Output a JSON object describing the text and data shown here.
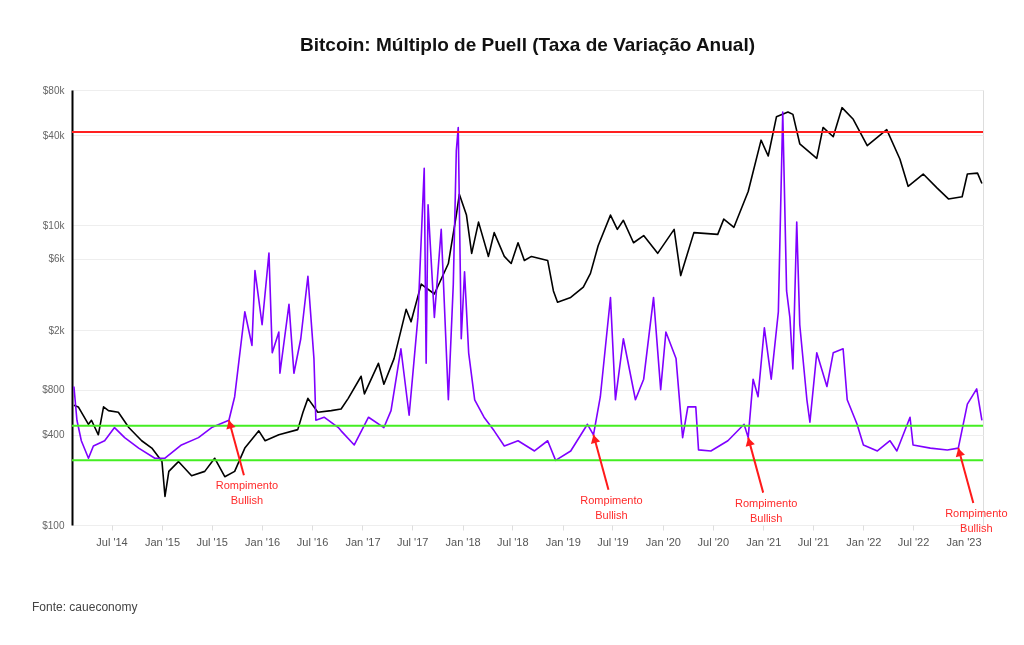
{
  "chart_data": {
    "type": "line",
    "title": "Bitcoin: Múltiplo de Puell (Taxa de Variação Anual)",
    "series": [
      {
        "color": "#000000",
        "x": [
          "2014-02-14",
          "2014-03-02",
          "2014-04-08",
          "2014-04-19",
          "2014-05-14",
          "2014-06-02",
          "2014-06-20",
          "2014-07-26",
          "2014-09-02",
          "2014-10-19",
          "2014-11-25",
          "2015-01-01",
          "2015-01-12",
          "2015-01-26",
          "2015-03-02",
          "2015-04-19",
          "2015-06-06",
          "2015-07-12",
          "2015-08-18",
          "2015-09-23",
          "2015-10-30",
          "2015-12-20",
          "2016-01-12",
          "2016-03-02",
          "2016-05-10",
          "2016-05-29",
          "2016-06-16",
          "2016-07-22",
          "2016-09-09",
          "2016-10-15",
          "2016-11-10",
          "2016-12-27",
          "2017-01-08",
          "2017-02-28",
          "2017-03-20",
          "2017-04-26",
          "2017-06-09",
          "2017-06-27",
          "2017-08-03",
          "2017-09-20",
          "2017-11-10",
          "2017-12-09",
          "2017-12-20",
          "2018-01-15",
          "2018-02-03",
          "2018-02-28",
          "2018-04-05",
          "2018-04-26",
          "2018-06-02",
          "2018-06-27",
          "2018-07-22",
          "2018-08-14",
          "2018-09-09",
          "2018-11-07",
          "2018-11-28",
          "2018-12-13",
          "2019-01-30",
          "2019-03-17",
          "2019-04-12",
          "2019-05-10",
          "2019-06-24",
          "2019-07-19",
          "2019-08-10",
          "2019-09-16",
          "2019-10-23",
          "2019-12-13",
          "2020-02-11",
          "2020-03-06",
          "2020-04-23",
          "2020-07-19",
          "2020-08-10",
          "2020-09-16",
          "2020-11-07",
          "2020-12-24",
          "2021-01-19",
          "2021-02-18",
          "2021-04-01",
          "2021-04-19",
          "2021-05-14",
          "2021-07-15",
          "2021-08-07",
          "2021-09-13",
          "2021-10-15",
          "2021-11-25",
          "2022-01-15",
          "2022-03-27",
          "2022-05-14",
          "2022-06-13",
          "2022-08-07",
          "2022-09-27",
          "2022-11-07",
          "2022-12-27",
          "2023-01-15",
          "2023-02-21",
          "2023-03-09"
        ],
        "values": [
          630,
          614,
          470,
          500,
          400,
          614,
          580,
          565,
          447,
          365,
          326,
          265,
          155,
          228,
          265,
          213,
          228,
          279,
          210,
          228,
          326,
          425,
          365,
          400,
          433,
          565,
          700,
          565,
          580,
          595,
          700,
          983,
          750,
          1200,
          870,
          1290,
          2750,
          2270,
          4050,
          3480,
          5560,
          11700,
          16100,
          11700,
          6500,
          10500,
          6200,
          8940,
          6200,
          5560,
          7650,
          5830,
          6200,
          5830,
          3650,
          3070,
          3300,
          3870,
          4780,
          7300,
          11700,
          9400,
          10800,
          7650,
          8540,
          6500,
          9400,
          4620,
          8940,
          8700,
          11000,
          9700,
          16800,
          37000,
          29000,
          53000,
          57000,
          55000,
          35000,
          28000,
          45000,
          39000,
          61000,
          51000,
          34000,
          43500,
          27700,
          18200,
          22000,
          17700,
          15000,
          15500,
          22000,
          22300,
          19000
        ]
      },
      {
        "color": "#7f00ff",
        "x": [
          "2014-02-14",
          "2014-02-25",
          "2014-03-13",
          "2014-04-08",
          "2014-04-26",
          "2014-06-06",
          "2014-07-12",
          "2014-08-18",
          "2014-10-08",
          "2014-12-06",
          "2015-01-12",
          "2015-03-13",
          "2015-05-14",
          "2015-07-01",
          "2015-09-02",
          "2015-09-23",
          "2015-10-30",
          "2015-11-25",
          "2015-12-06",
          "2016-01-01",
          "2016-01-26",
          "2016-02-07",
          "2016-03-02",
          "2016-03-06",
          "2016-04-08",
          "2016-04-26",
          "2016-05-21",
          "2016-06-16",
          "2016-07-08",
          "2016-07-15",
          "2016-08-14",
          "2016-10-05",
          "2016-10-15",
          "2016-12-02",
          "2017-01-23",
          "2017-03-20",
          "2017-04-15",
          "2017-05-21",
          "2017-06-20",
          "2017-07-22",
          "2017-08-14",
          "2017-08-21",
          "2017-08-28",
          "2017-09-20",
          "2017-10-15",
          "2017-11-10",
          "2017-11-28",
          "2017-12-09",
          "2017-12-16",
          "2017-12-27",
          "2018-01-08",
          "2018-01-23",
          "2018-02-14",
          "2018-03-20",
          "2018-04-26",
          "2018-06-02",
          "2018-07-22",
          "2018-09-20",
          "2018-11-07",
          "2018-12-06",
          "2019-01-30",
          "2019-04-01",
          "2019-04-23",
          "2019-05-18",
          "2019-06-24",
          "2019-07-12",
          "2019-08-10",
          "2019-09-23",
          "2019-10-23",
          "2019-11-28",
          "2019-12-24",
          "2020-01-12",
          "2020-02-18",
          "2020-03-13",
          "2020-04-01",
          "2020-04-30",
          "2020-05-10",
          "2020-06-24",
          "2020-08-25",
          "2020-10-23",
          "2020-11-07",
          "2020-11-25",
          "2020-12-13",
          "2021-01-05",
          "2021-01-30",
          "2021-02-25",
          "2021-03-13",
          "2021-03-27",
          "2021-04-08",
          "2021-04-19",
          "2021-05-03",
          "2021-05-14",
          "2021-06-09",
          "2021-06-20",
          "2021-07-15",
          "2021-08-21",
          "2021-09-13",
          "2021-10-19",
          "2021-11-03",
          "2021-12-09",
          "2022-01-01",
          "2022-02-21",
          "2022-04-08",
          "2022-05-03",
          "2022-06-20",
          "2022-07-01",
          "2022-09-02",
          "2022-11-03",
          "2022-12-13",
          "2023-01-15",
          "2023-02-18",
          "2023-03-09"
        ],
        "values": [
          840,
          500,
          365,
          279,
          337,
          365,
          447,
          383,
          326,
          279,
          279,
          342,
          383,
          447,
          500,
          718,
          2650,
          1580,
          4990,
          2170,
          6530,
          1410,
          1940,
          1030,
          2970,
          1030,
          1750,
          4570,
          1290,
          500,
          524,
          447,
          425,
          342,
          524,
          447,
          580,
          1500,
          540,
          2430,
          24000,
          1200,
          13700,
          2430,
          9400,
          685,
          4050,
          31600,
          45000,
          1750,
          4900,
          1410,
          685,
          524,
          425,
          337,
          365,
          312,
          365,
          270,
          312,
          470,
          400,
          718,
          3300,
          685,
          1750,
          685,
          940,
          3300,
          800,
          1940,
          1290,
          383,
          614,
          614,
          317,
          312,
          365,
          470,
          383,
          940,
          718,
          2070,
          940,
          2650,
          57000,
          3650,
          2430,
          1100,
          10500,
          2170,
          685,
          485,
          1410,
          840,
          1410,
          1500,
          685,
          470,
          342,
          312,
          365,
          312,
          524,
          342,
          326,
          317,
          326,
          640,
          810,
          500
        ]
      }
    ],
    "xlim": [
      "2014-02-07",
      "2023-03-13"
    ],
    "xticks": [
      {
        "value": "2014-07-01",
        "label": "Jul '14"
      },
      {
        "value": "2015-01-01",
        "label": "Jan '15"
      },
      {
        "value": "2015-07-01",
        "label": "Jul '15"
      },
      {
        "value": "2016-01-01",
        "label": "Jan '16"
      },
      {
        "value": "2016-07-01",
        "label": "Jul '16"
      },
      {
        "value": "2017-01-01",
        "label": "Jan '17"
      },
      {
        "value": "2017-07-01",
        "label": "Jul '17"
      },
      {
        "value": "2018-01-01",
        "label": "Jan '18"
      },
      {
        "value": "2018-07-01",
        "label": "Jul '18"
      },
      {
        "value": "2019-01-01",
        "label": "Jan '19"
      },
      {
        "value": "2019-07-01",
        "label": "Jul '19"
      },
      {
        "value": "2020-01-01",
        "label": "Jan '20"
      },
      {
        "value": "2020-07-01",
        "label": "Jul '20"
      },
      {
        "value": "2021-01-01",
        "label": "Jan '21"
      },
      {
        "value": "2021-07-01",
        "label": "Jul '21"
      },
      {
        "value": "2022-01-01",
        "label": "Jan '22"
      },
      {
        "value": "2022-07-01",
        "label": "Jul '22"
      },
      {
        "value": "2023-01-01",
        "label": "Jan '23"
      }
    ],
    "ylim": [
      100,
      80000
    ],
    "yticks": [
      {
        "value": 100,
        "label": "$100"
      },
      {
        "value": 400,
        "label": "$400"
      },
      {
        "value": 800,
        "label": "$800"
      },
      {
        "value": 2000,
        "label": "$2k"
      },
      {
        "value": 6000,
        "label": "$6k"
      },
      {
        "value": 10000,
        "label": "$10k"
      },
      {
        "value": 40000,
        "label": "$40k"
      },
      {
        "value": 80000,
        "label": "$80k"
      }
    ],
    "log": "y",
    "grid": "y",
    "line_style": "solid",
    "ref_lines": [
      {
        "axis": "y",
        "value": 42000,
        "color": "#ff2020"
      },
      {
        "axis": "y",
        "value": 460,
        "color": "#44ee22"
      },
      {
        "axis": "y",
        "value": 270,
        "color": "#44ee22"
      }
    ],
    "annotations": [
      {
        "text": "Rompimento Bullish",
        "x": "2015-09-02",
        "y": 500
      },
      {
        "text": "Rompimento Bullish",
        "x": "2019-04-23",
        "y": 400
      },
      {
        "text": "Rompimento Bullish",
        "x": "2020-11-07",
        "y": 383
      },
      {
        "text": "Rompimento Bullish",
        "x": "2022-12-13",
        "y": 326
      },
      "Fonte: caueconomy"
    ]
  }
}
